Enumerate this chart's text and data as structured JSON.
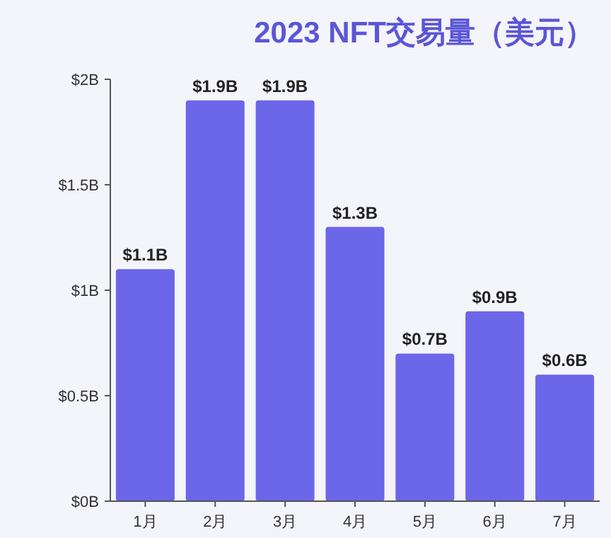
{
  "chart_data": {
    "type": "bar",
    "title": "2023 NFT交易量（美元）",
    "categories": [
      "1月",
      "2月",
      "3月",
      "4月",
      "5月",
      "6月",
      "7月"
    ],
    "values": [
      1.1,
      1.9,
      1.9,
      1.3,
      0.7,
      0.9,
      0.6
    ],
    "value_labels": [
      "$1.1B",
      "$1.9B",
      "$1.9B",
      "$1.3B",
      "$0.7B",
      "$0.9B",
      "$0.6B"
    ],
    "color": "#6c66e9",
    "ylim": [
      0,
      2
    ],
    "yticks": [
      {
        "value": 0,
        "label": "$0B"
      },
      {
        "value": 0.5,
        "label": "$0.5B"
      },
      {
        "value": 1,
        "label": "$1B"
      },
      {
        "value": 1.5,
        "label": "$1.5B"
      },
      {
        "value": 2,
        "label": "$2B"
      }
    ],
    "grid": false
  }
}
